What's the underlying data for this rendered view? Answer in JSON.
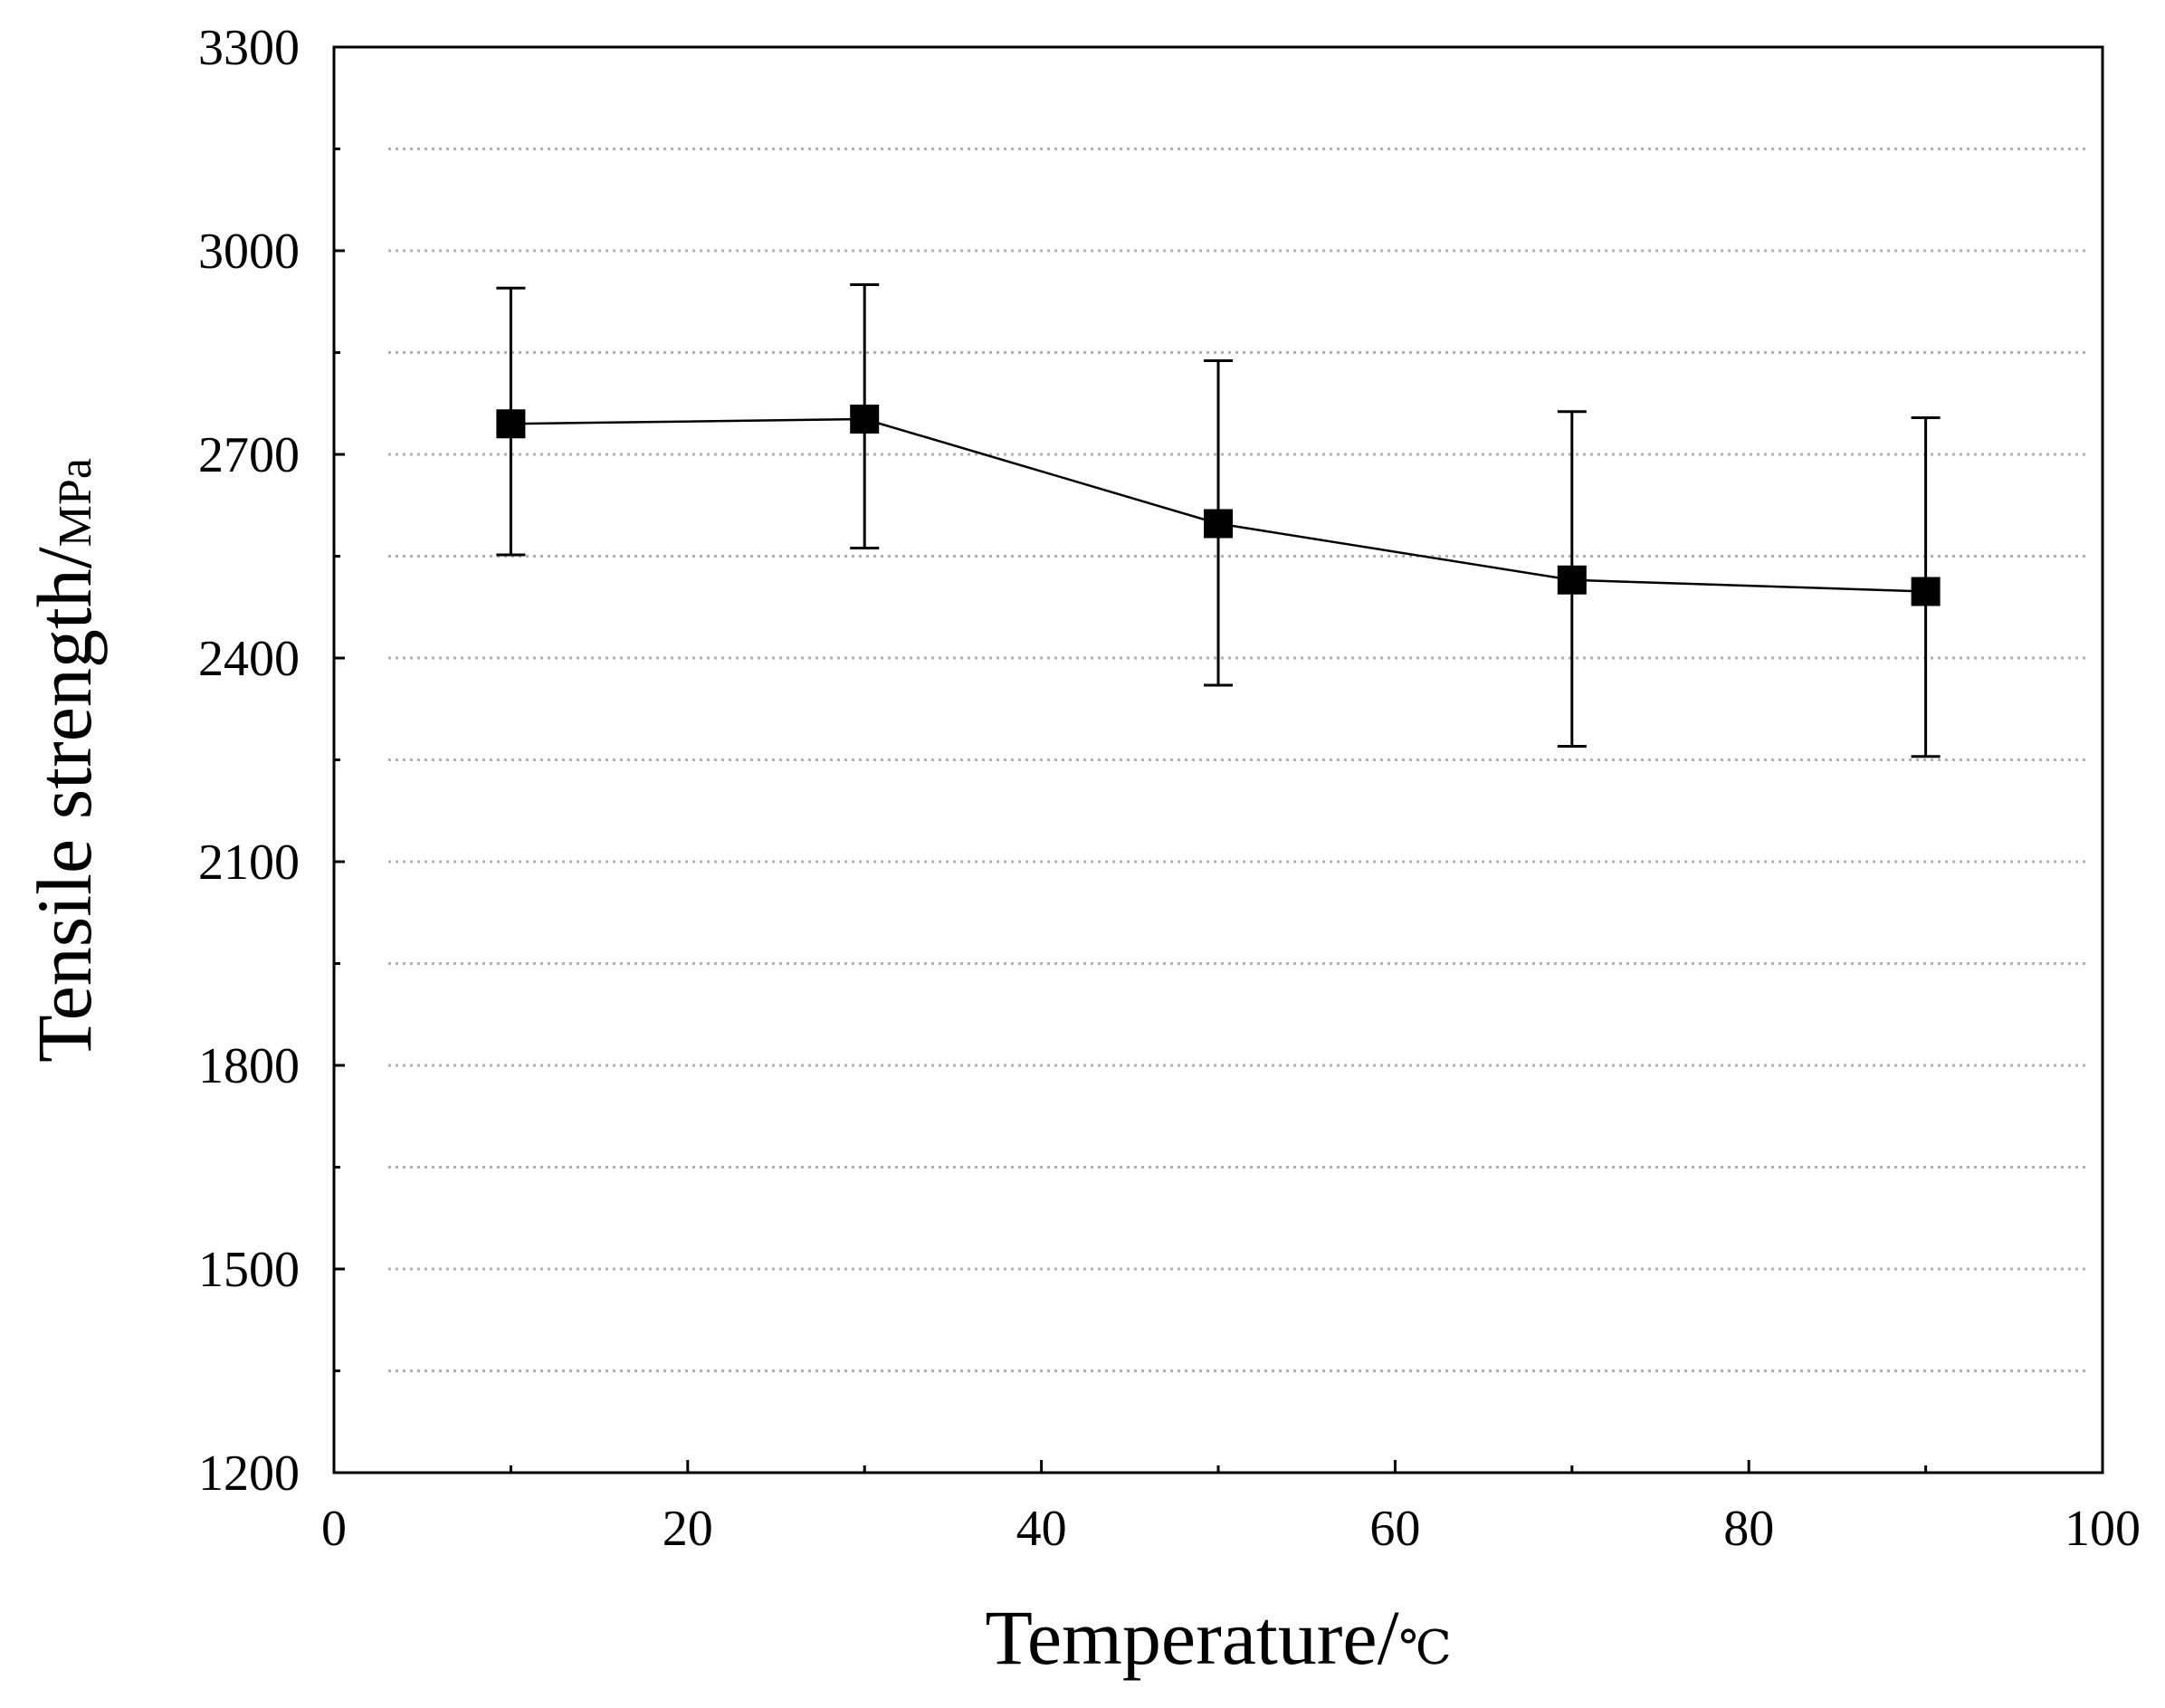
{
  "chart_data": {
    "type": "line",
    "title": "",
    "xlabel": "Temperature/",
    "xlabel_unit": "℃",
    "ylabel": "Tensile strength/",
    "ylabel_unit": "MPa",
    "xlim": [
      0,
      100
    ],
    "ylim": [
      1200,
      3300
    ],
    "x_ticks": [
      0,
      20,
      40,
      60,
      80,
      100
    ],
    "x_minor_ticks": [
      10,
      30,
      50,
      70,
      90
    ],
    "y_ticks": [
      1200,
      1500,
      1800,
      2100,
      2400,
      2700,
      3000,
      3300
    ],
    "y_minor_ticks": [
      1350,
      1650,
      1950,
      2250,
      2550,
      2850,
      3150
    ],
    "x_tick_labels": [
      "0",
      "20",
      "40",
      "60",
      "80",
      "100"
    ],
    "y_tick_labels": [
      "1200",
      "1500",
      "1800",
      "2100",
      "2400",
      "2700",
      "3000",
      "3300"
    ],
    "grid": "dotted horizontal",
    "colors": {
      "line": "#000000",
      "marker": "#000000",
      "grid": "#b0b0b0",
      "background": "#ffffff"
    },
    "series": [
      {
        "name": "Tensile strength",
        "marker": "square",
        "x": [
          10,
          30,
          50,
          70,
          90
        ],
        "y": [
          2745,
          2752,
          2598,
          2515,
          2498
        ],
        "error_upper": [
          2945,
          2950,
          2838,
          2763,
          2754
        ],
        "error_lower": [
          2552,
          2562,
          2360,
          2270,
          2255
        ]
      }
    ]
  }
}
